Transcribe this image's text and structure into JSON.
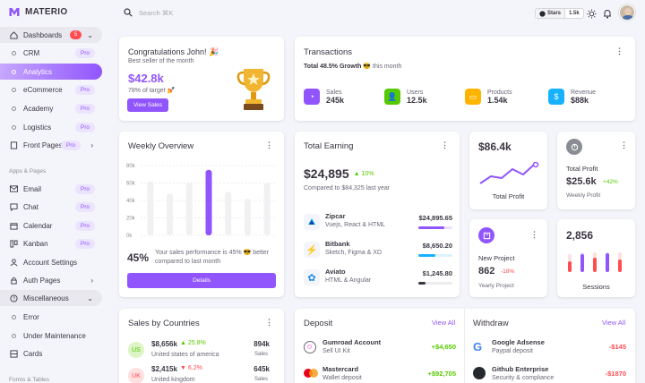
{
  "brand": {
    "name": "MATERIO"
  },
  "topbar": {
    "search_placeholder": "Search ⌘K",
    "stars_label": "Stars",
    "stars_count": "1.5k"
  },
  "sidebar": {
    "dashboards": {
      "label": "Dashboards",
      "badge": "5"
    },
    "items": [
      {
        "label": "CRM",
        "pro": "Pro"
      },
      {
        "label": "Analytics"
      },
      {
        "label": "eCommerce",
        "pro": "Pro"
      },
      {
        "label": "Academy",
        "pro": "Pro"
      },
      {
        "label": "Logistics",
        "pro": "Pro"
      }
    ],
    "front_pages": {
      "label": "Front Pages",
      "pro": "Pro"
    },
    "section_apps": "Apps & Pages",
    "apps": [
      {
        "label": "Email",
        "pro": "Pro"
      },
      {
        "label": "Chat",
        "pro": "Pro"
      },
      {
        "label": "Calendar",
        "pro": "Pro"
      },
      {
        "label": "Kanban",
        "pro": "Pro"
      },
      {
        "label": "Account Settings"
      },
      {
        "label": "Auth Pages"
      },
      {
        "label": "Miscellaneous"
      },
      {
        "label": "Error"
      },
      {
        "label": "Under Maintenance"
      },
      {
        "label": "Cards"
      }
    ],
    "section_forms": "Forms & Tables"
  },
  "congrats": {
    "title": "Congratulations John! 🎉",
    "subtitle": "Best seller of the month",
    "amount": "$42.8k",
    "target": "78% of target 💅",
    "button": "View Sales"
  },
  "transactions": {
    "title": "Transactions",
    "growth_prefix": "Total 48.5% Growth",
    "growth_suffix": "😎 this month",
    "stats": [
      {
        "label": "Sales",
        "value": "245k",
        "color": "#9155fd"
      },
      {
        "label": "Users",
        "value": "12.5k",
        "color": "#56ca00"
      },
      {
        "label": "Products",
        "value": "1.54k",
        "color": "#ffb400"
      },
      {
        "label": "Revenue",
        "value": "$88k",
        "color": "#16b1ff"
      }
    ]
  },
  "weekly": {
    "title": "Weekly Overview",
    "percent": "45%",
    "text": "Your sales performance is 45% 😎 better compared to last month",
    "button": "Details"
  },
  "chart_data": {
    "type": "bar",
    "yticks": [
      "80k",
      "60k",
      "40k",
      "20k",
      "0k"
    ],
    "ylim": [
      0,
      80
    ],
    "values": [
      62,
      48,
      60,
      75,
      50,
      42,
      60
    ],
    "highlight_index": 3,
    "grid": true
  },
  "earning": {
    "title": "Total Earning",
    "amount": "$24,895",
    "change": "10%",
    "compare": "Compared to $84,325 last year",
    "items": [
      {
        "name": "Zipcar",
        "desc": "Vuejs, React & HTML",
        "amount": "$24,895.65",
        "progress": 0.75,
        "color": "#9155fd"
      },
      {
        "name": "Bitbank",
        "desc": "Sketch, Figma & XD",
        "amount": "$8,650.20",
        "progress": 0.5,
        "color": "#16b1ff"
      },
      {
        "name": "Aviato",
        "desc": "HTML & Angular",
        "amount": "$1,245.80",
        "progress": 0.2,
        "color": "#8a8d93"
      }
    ]
  },
  "profit_line": {
    "value": "$86.4k",
    "label": "Total Profit"
  },
  "total_profit": {
    "label": "Total Profit",
    "value": "$25.6k",
    "change": "+42%",
    "sub": "Weekly Profit"
  },
  "new_project": {
    "label": "New Project",
    "value": "862",
    "change": "-18%",
    "sub": "Yearly Project"
  },
  "sessions": {
    "value": "2,856",
    "label": "Sessions"
  },
  "countries": {
    "title": "Sales by Countries",
    "rows": [
      {
        "code": "US",
        "amount": "$8,656k",
        "change": "25.8%",
        "country": "United states of america",
        "sales": "894k",
        "sales_label": "Sales"
      },
      {
        "code": "UK",
        "amount": "$2,415k",
        "change": "6.2%",
        "country": "United kingdom",
        "sales": "645k",
        "sales_label": "Sales"
      }
    ]
  },
  "deposit": {
    "title": "Deposit",
    "view_all": "View All",
    "rows": [
      {
        "name": "Gumroad Account",
        "desc": "Sell UI Kit",
        "amount": "+$4,650"
      },
      {
        "name": "Mastercard",
        "desc": "Wallet deposit",
        "amount": "+$92,705"
      }
    ]
  },
  "withdraw": {
    "title": "Withdraw",
    "view_all": "View All",
    "rows": [
      {
        "name": "Google Adsense",
        "desc": "Paypal deposit",
        "amount": "-$145"
      },
      {
        "name": "Github Enterprise",
        "desc": "Security & compliance",
        "amount": "-$1870"
      }
    ]
  }
}
